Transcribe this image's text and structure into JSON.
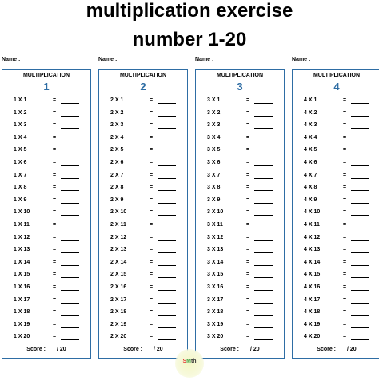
{
  "title_line1": "multiplication exercise",
  "title_line2": "number 1-20",
  "name_label": "Name :",
  "card_heading": "MULTIPLICATION",
  "equals": "=",
  "score_label": "Score :",
  "score_total": "/ 20",
  "accent_color": "#2e6da4",
  "logo": {
    "s": "S",
    "m": "M",
    "rest": "th"
  },
  "sheets": [
    {
      "number": "1",
      "questions": [
        "1 X 1",
        "1 X 2",
        "1 X 3",
        "1 X 4",
        "1 X 5",
        "1 X 6",
        "1 X 7",
        "1 X 8",
        "1 X 9",
        "1 X 10",
        "1 X 11",
        "1 X 12",
        "1 X 13",
        "1 X 14",
        "1 X 15",
        "1 X 16",
        "1 X 17",
        "1 X 18",
        "1 X 19",
        "1 X 20"
      ]
    },
    {
      "number": "2",
      "questions": [
        "2 X 1",
        "2 X 2",
        "2 X 3",
        "2 X 4",
        "2 X 5",
        "2 X 6",
        "2 X 7",
        "2 X 8",
        "2 X 9",
        "2 X 10",
        "2 X 11",
        "2 X 12",
        "2 X 13",
        "2 X 14",
        "2 X 15",
        "2 X 16",
        "2 X 17",
        "2 X 18",
        "2 X 19",
        "2 X 20"
      ]
    },
    {
      "number": "3",
      "questions": [
        "3 X 1",
        "3 X 2",
        "3 X 3",
        "3 X 4",
        "3 X 5",
        "3 X 6",
        "3 X 7",
        "3 X 8",
        "3 X 9",
        "3 X 10",
        "3 X 11",
        "3 X 12",
        "3 X 13",
        "3 X 14",
        "3 X 15",
        "3 X 16",
        "3 X 17",
        "3 X 18",
        "3 X 19",
        "3 X 20"
      ]
    },
    {
      "number": "4",
      "questions": [
        "4 X 1",
        "4 X 2",
        "4 X 3",
        "4 X 4",
        "4 X 5",
        "4 X 6",
        "4 X 7",
        "4 X 8",
        "4 X 9",
        "4 X 10",
        "4 X 11",
        "4 X 12",
        "4 X 13",
        "4 X 14",
        "4 X 15",
        "4 X 16",
        "4 X 17",
        "4 X 18",
        "4 X 19",
        "4 X 20"
      ]
    }
  ]
}
